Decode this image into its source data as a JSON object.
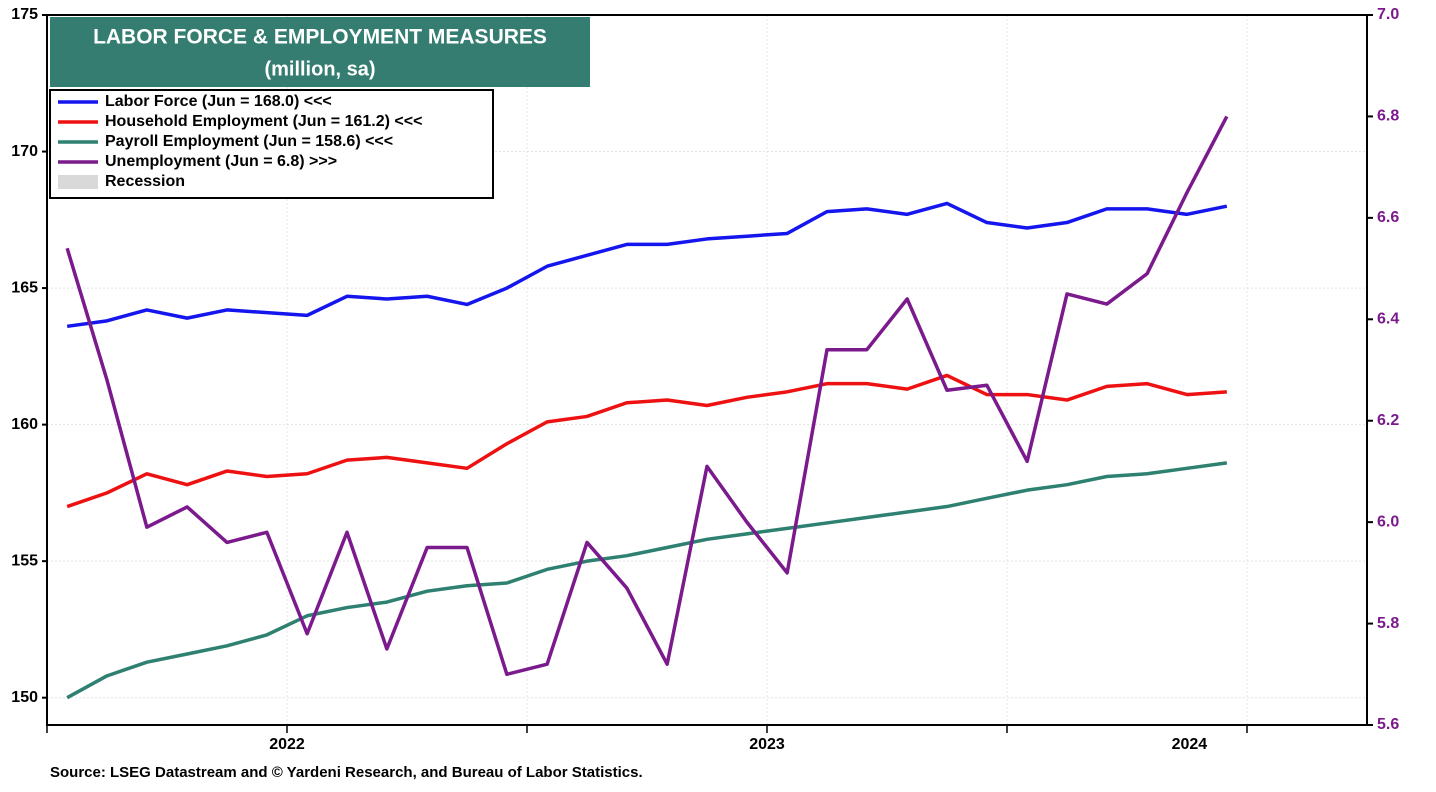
{
  "chart_data": {
    "type": "line",
    "title": "LABOR FORCE & EMPLOYMENT MEASURES",
    "subtitle": "(million, sa)",
    "source": "Source: LSEG Datastream and © Yardeni Research, and Bureau of Labor Statistics.",
    "title_color": "#347d70",
    "x": [
      2022.042,
      2022.125,
      2022.208,
      2022.292,
      2022.375,
      2022.458,
      2022.542,
      2022.625,
      2022.708,
      2022.792,
      2022.875,
      2022.958,
      2023.042,
      2023.125,
      2023.208,
      2023.292,
      2023.375,
      2023.458,
      2023.542,
      2023.625,
      2023.708,
      2023.792,
      2023.875,
      2023.958,
      2024.042,
      2024.125,
      2024.208,
      2024.292,
      2024.375,
      2024.458
    ],
    "xlim": [
      2022,
      2024.75
    ],
    "xticks": [
      {
        "value": 2022.5,
        "label": "2022"
      },
      {
        "value": 2023.5,
        "label": "2023"
      },
      {
        "value": 2024.38,
        "label": "2024"
      }
    ],
    "xminorticks": [
      2022,
      2022.5,
      2023,
      2023.5,
      2024,
      2024.5
    ],
    "ylim": [
      149,
      175
    ],
    "yticks": [
      150,
      155,
      160,
      165,
      170,
      175
    ],
    "y2lim": [
      5.6,
      7.0
    ],
    "y2ticks": [
      5.6,
      5.8,
      {
        "value": 6.0,
        "label": "6.0"
      },
      6.2,
      6.4,
      6.6,
      6.8,
      {
        "value": 7.0,
        "label": "7.0"
      }
    ],
    "y2_color": "#7b1a8c",
    "grid": true,
    "series": [
      {
        "name": "Labor Force (Jun = 168.0) <<<",
        "color": "#1515ee",
        "values": [
          163.6,
          163.8,
          164.2,
          163.9,
          164.2,
          164.1,
          164.0,
          164.7,
          164.6,
          164.7,
          164.4,
          165.0,
          165.8,
          166.2,
          166.6,
          166.6,
          166.8,
          166.9,
          167.0,
          167.8,
          167.9,
          167.7,
          168.1,
          167.4,
          167.2,
          167.4,
          167.9,
          167.9,
          167.7,
          168.0
        ]
      },
      {
        "name": "Household Employment (Jun = 161.2) <<<",
        "color": "#ee1111",
        "values": [
          157.0,
          157.5,
          158.2,
          157.8,
          158.3,
          158.1,
          158.2,
          158.7,
          158.8,
          158.6,
          158.4,
          159.3,
          160.1,
          160.3,
          160.8,
          160.9,
          160.7,
          161.0,
          161.2,
          161.5,
          161.5,
          161.3,
          161.8,
          161.1,
          161.1,
          160.9,
          161.4,
          161.5,
          161.1,
          161.2
        ]
      },
      {
        "name": "Payroll Employment (Jun = 158.6) <<<",
        "color": "#2e8070",
        "values": [
          150.0,
          150.8,
          151.3,
          151.6,
          151.9,
          152.3,
          153.0,
          153.3,
          153.5,
          153.9,
          154.1,
          154.2,
          154.7,
          155.0,
          155.2,
          155.5,
          155.8,
          156.0,
          156.2,
          156.4,
          156.6,
          156.8,
          157.0,
          157.3,
          157.6,
          157.8,
          158.1,
          158.2,
          158.4,
          158.6
        ]
      },
      {
        "name": "Unemployment (Jun = 6.8) >>>",
        "color": "#7b1a8c",
        "axis": "y2",
        "values": [
          6.54,
          6.28,
          5.99,
          6.03,
          5.96,
          5.98,
          5.78,
          5.98,
          5.75,
          5.95,
          5.95,
          5.7,
          5.72,
          5.96,
          5.87,
          5.72,
          6.11,
          6.0,
          5.9,
          6.34,
          6.34,
          6.44,
          6.26,
          6.27,
          6.12,
          6.45,
          6.43,
          6.49,
          6.65,
          6.8
        ]
      }
    ],
    "recession_label": "Recession",
    "recession_color": "#d9d9d9"
  }
}
